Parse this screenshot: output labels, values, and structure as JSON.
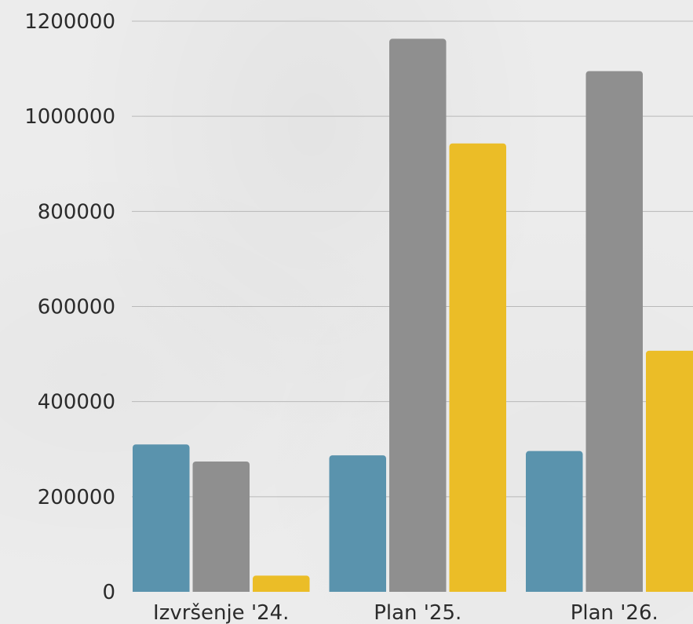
{
  "chart_data": {
    "type": "bar",
    "title": "",
    "xlabel": "",
    "ylabel": "",
    "categories": [
      "Izvršenje '24.",
      "Plan '25.",
      "Plan '26."
    ],
    "series": [
      {
        "values": [
          310000,
          287000,
          296000
        ],
        "color": "#5a93ad"
      },
      {
        "values": [
          274000,
          1163000,
          1095000
        ],
        "color": "#8f8f8f"
      },
      {
        "values": [
          34000,
          943000,
          507000
        ],
        "color": "#ebbd27"
      }
    ],
    "ylim": [
      0,
      1200000
    ],
    "yticks": [
      "0",
      "200000",
      "400000",
      "600000",
      "800000",
      "1000000",
      "1200000"
    ],
    "grid": true,
    "legend": "none"
  }
}
